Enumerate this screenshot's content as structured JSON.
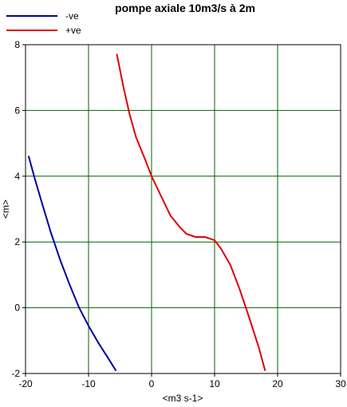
{
  "chart_data": {
    "type": "line",
    "title": "pompe axiale 10m3/s à 2m",
    "xlabel": "<m3 s-1>",
    "ylabel": "<m>",
    "xlim": [
      -20,
      30
    ],
    "ylim": [
      -2,
      8
    ],
    "xticks": [
      -20,
      -10,
      0,
      10,
      20,
      30
    ],
    "yticks": [
      -2,
      0,
      2,
      4,
      6,
      8
    ],
    "grid": true,
    "legend_position": "top-left",
    "colors": {
      "background": "#ffffff",
      "grid": "#006400",
      "axis": "#000000",
      "series_neg": "#00009c",
      "series_pos": "#e00000"
    },
    "series": [
      {
        "name": "-ve",
        "color": "#00009c",
        "points": [
          [
            -19.5,
            4.6
          ],
          [
            -18.5,
            3.9
          ],
          [
            -17.5,
            3.25
          ],
          [
            -16.0,
            2.3
          ],
          [
            -14.5,
            1.45
          ],
          [
            -13.0,
            0.7
          ],
          [
            -11.5,
            0.0
          ],
          [
            -10.0,
            -0.55
          ],
          [
            -8.5,
            -1.05
          ],
          [
            -7.0,
            -1.5
          ],
          [
            -5.7,
            -1.9
          ]
        ]
      },
      {
        "name": "+ve",
        "color": "#e00000",
        "points": [
          [
            -5.5,
            7.7
          ],
          [
            -4.5,
            6.75
          ],
          [
            -3.5,
            5.9
          ],
          [
            -2.5,
            5.2
          ],
          [
            -1.0,
            4.5
          ],
          [
            0.0,
            4.0
          ],
          [
            1.5,
            3.4
          ],
          [
            3.0,
            2.8
          ],
          [
            4.5,
            2.45
          ],
          [
            5.5,
            2.25
          ],
          [
            7.0,
            2.15
          ],
          [
            8.5,
            2.15
          ],
          [
            10.0,
            2.05
          ],
          [
            11.0,
            1.8
          ],
          [
            12.5,
            1.3
          ],
          [
            14.0,
            0.55
          ],
          [
            15.5,
            -0.3
          ],
          [
            17.0,
            -1.2
          ],
          [
            18.0,
            -1.9
          ]
        ]
      }
    ]
  }
}
